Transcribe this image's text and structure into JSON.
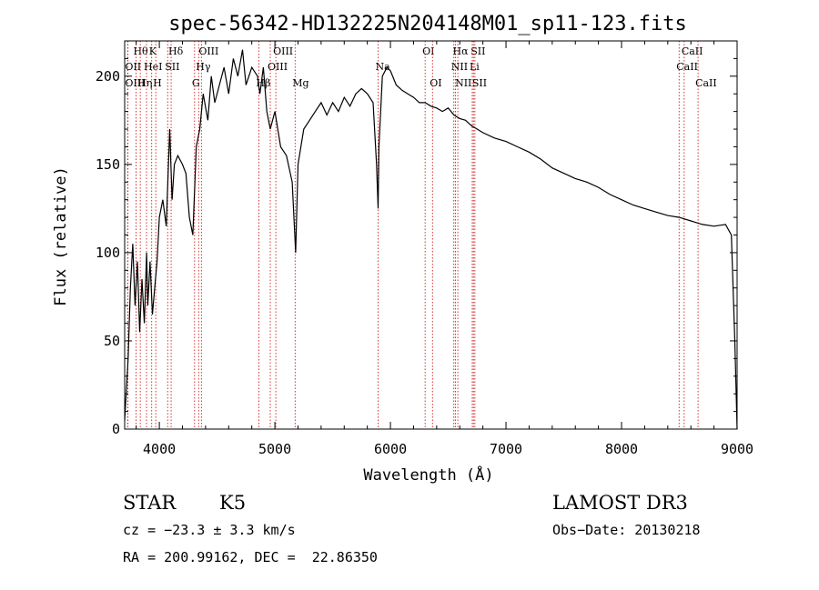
{
  "chart_data": {
    "type": "line",
    "title": "spec-56342-HD132225N204148M01_sp11-123.fits",
    "xlabel": "Wavelength (Å)",
    "ylabel": "Flux (relative)",
    "xlim": [
      3700,
      9000
    ],
    "ylim": [
      0,
      220
    ],
    "xticks": [
      4000,
      5000,
      6000,
      7000,
      8000,
      9000
    ],
    "yticks": [
      0,
      50,
      100,
      150,
      200
    ],
    "series": [
      {
        "name": "spectrum",
        "points": [
          [
            3700,
            5
          ],
          [
            3730,
            40
          ],
          [
            3750,
            80
          ],
          [
            3770,
            105
          ],
          [
            3790,
            70
          ],
          [
            3810,
            95
          ],
          [
            3830,
            55
          ],
          [
            3850,
            85
          ],
          [
            3870,
            60
          ],
          [
            3890,
            100
          ],
          [
            3900,
            70
          ],
          [
            3920,
            95
          ],
          [
            3940,
            65
          ],
          [
            3960,
            80
          ],
          [
            3980,
            95
          ],
          [
            4000,
            120
          ],
          [
            4030,
            130
          ],
          [
            4060,
            115
          ],
          [
            4090,
            170
          ],
          [
            4110,
            130
          ],
          [
            4130,
            150
          ],
          [
            4160,
            155
          ],
          [
            4200,
            150
          ],
          [
            4230,
            145
          ],
          [
            4260,
            120
          ],
          [
            4290,
            110
          ],
          [
            4320,
            160
          ],
          [
            4350,
            170
          ],
          [
            4380,
            190
          ],
          [
            4420,
            175
          ],
          [
            4450,
            200
          ],
          [
            4480,
            185
          ],
          [
            4520,
            195
          ],
          [
            4560,
            205
          ],
          [
            4600,
            190
          ],
          [
            4640,
            210
          ],
          [
            4680,
            200
          ],
          [
            4720,
            215
          ],
          [
            4750,
            195
          ],
          [
            4800,
            205
          ],
          [
            4850,
            200
          ],
          [
            4870,
            190
          ],
          [
            4900,
            205
          ],
          [
            4930,
            180
          ],
          [
            4960,
            170
          ],
          [
            5000,
            180
          ],
          [
            5050,
            160
          ],
          [
            5100,
            155
          ],
          [
            5150,
            140
          ],
          [
            5180,
            100
          ],
          [
            5200,
            150
          ],
          [
            5250,
            170
          ],
          [
            5300,
            175
          ],
          [
            5350,
            180
          ],
          [
            5400,
            185
          ],
          [
            5450,
            178
          ],
          [
            5500,
            185
          ],
          [
            5550,
            180
          ],
          [
            5600,
            188
          ],
          [
            5650,
            183
          ],
          [
            5700,
            190
          ],
          [
            5750,
            193
          ],
          [
            5800,
            190
          ],
          [
            5850,
            185
          ],
          [
            5880,
            150
          ],
          [
            5893,
            125
          ],
          [
            5900,
            160
          ],
          [
            5930,
            200
          ],
          [
            5970,
            205
          ],
          [
            6000,
            203
          ],
          [
            6050,
            195
          ],
          [
            6100,
            192
          ],
          [
            6150,
            190
          ],
          [
            6200,
            188
          ],
          [
            6250,
            185
          ],
          [
            6300,
            185
          ],
          [
            6350,
            183
          ],
          [
            6400,
            182
          ],
          [
            6450,
            180
          ],
          [
            6500,
            182
          ],
          [
            6550,
            178
          ],
          [
            6600,
            176
          ],
          [
            6650,
            175
          ],
          [
            6700,
            172
          ],
          [
            6750,
            170
          ],
          [
            6800,
            168
          ],
          [
            6900,
            165
          ],
          [
            7000,
            163
          ],
          [
            7100,
            160
          ],
          [
            7200,
            157
          ],
          [
            7300,
            153
          ],
          [
            7400,
            148
          ],
          [
            7500,
            145
          ],
          [
            7600,
            142
          ],
          [
            7700,
            140
          ],
          [
            7800,
            137
          ],
          [
            7900,
            133
          ],
          [
            8000,
            130
          ],
          [
            8100,
            127
          ],
          [
            8200,
            125
          ],
          [
            8300,
            123
          ],
          [
            8400,
            121
          ],
          [
            8500,
            120
          ],
          [
            8600,
            118
          ],
          [
            8700,
            116
          ],
          [
            8800,
            115
          ],
          [
            8900,
            116
          ],
          [
            8950,
            110
          ],
          [
            8980,
            50
          ],
          [
            9000,
            0
          ]
        ]
      }
    ],
    "lines": [
      {
        "label": "Hθ",
        "wl": 3798,
        "row": 1
      },
      {
        "label": "K",
        "wl": 3934,
        "row": 1
      },
      {
        "label": "Hδ",
        "wl": 4102,
        "row": 1
      },
      {
        "label": "OIII",
        "wl": 4364,
        "row": 1
      },
      {
        "label": "OIII",
        "wl": 5008,
        "row": 1
      },
      {
        "label": "OI",
        "wl": 6300,
        "row": 1
      },
      {
        "label": "Hα",
        "wl": 6563,
        "row": 1
      },
      {
        "label": "SII",
        "wl": 6718,
        "row": 1
      },
      {
        "label": "CaII",
        "wl": 8542,
        "row": 1
      },
      {
        "label": "OII",
        "wl": 3727,
        "row": 2
      },
      {
        "label": "HeI",
        "wl": 3889,
        "row": 2
      },
      {
        "label": "SII",
        "wl": 4072,
        "row": 2
      },
      {
        "label": "Hγ",
        "wl": 4340,
        "row": 2
      },
      {
        "label": "OIII",
        "wl": 4960,
        "row": 2
      },
      {
        "label": "Na",
        "wl": 5893,
        "row": 2
      },
      {
        "label": "NII",
        "wl": 6549,
        "row": 2
      },
      {
        "label": "Li",
        "wl": 6708,
        "row": 2
      },
      {
        "label": "CaII",
        "wl": 8498,
        "row": 2
      },
      {
        "label": "OIII",
        "wl": 3727,
        "row": 3
      },
      {
        "label": "Hη",
        "wl": 3835,
        "row": 3
      },
      {
        "label": "H",
        "wl": 3969,
        "row": 3
      },
      {
        "label": "G",
        "wl": 4305,
        "row": 3
      },
      {
        "label": "Hβ",
        "wl": 4861,
        "row": 3
      },
      {
        "label": "Mg",
        "wl": 5175,
        "row": 3
      },
      {
        "label": "OI",
        "wl": 6364,
        "row": 3
      },
      {
        "label": "NII",
        "wl": 6583,
        "row": 3
      },
      {
        "label": "SII",
        "wl": 6731,
        "row": 3
      },
      {
        "label": "CaII",
        "wl": 8662,
        "row": 3
      }
    ]
  },
  "info": {
    "class": "STAR",
    "subclass": "K5",
    "survey": "LAMOST DR3",
    "cz": "cz = −23.3 ± 3.3 km/s",
    "obs_date": "Obs−Date: 20130218",
    "coords": "RA = 200.99162, DEC =  22.86350"
  }
}
